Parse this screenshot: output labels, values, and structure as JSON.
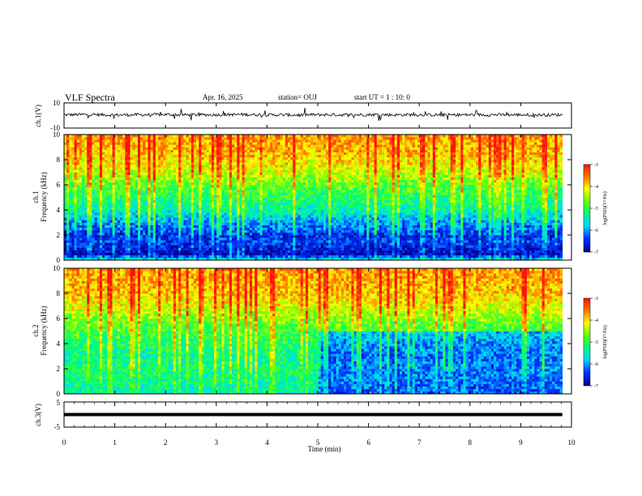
{
  "header": {
    "title": "VLF Spectra",
    "date": "Apr. 16, 2025",
    "station": "station= OUJ",
    "start_ut": "start  UT  =   1 : 10: 0"
  },
  "chart_data": [
    {
      "type": "line",
      "id": "ch1_waveform",
      "ylabel": "ch.1(V)",
      "ylim": [
        -10,
        10
      ],
      "y_tick_labels": [
        "10",
        "-10"
      ],
      "xlim": [
        0,
        10
      ],
      "series": [
        {
          "x": [
            0,
            0.5,
            1,
            1.5,
            2,
            2.5,
            3,
            3.5,
            4,
            4.5,
            5,
            5.5,
            6,
            6.5,
            7,
            7.5,
            8,
            8.5,
            9,
            9.5,
            9.82
          ],
          "y": [
            0.5,
            0.8,
            0.4,
            0.6,
            0.7,
            0.5,
            0.6,
            0.8,
            0.5,
            0.4,
            0.6,
            0.5,
            0.7,
            0.5,
            0.6,
            0.4,
            0.5,
            0.6,
            0.5,
            0.4,
            0.5
          ],
          "color": "#000000"
        }
      ]
    },
    {
      "type": "heatmap",
      "id": "ch1_spectrogram",
      "ylabel": "ch.1\nFrequency (kHz)",
      "ylim": [
        0,
        10
      ],
      "xlim": [
        0,
        10
      ],
      "y_ticks": [
        "0",
        "2",
        "4",
        "6",
        "8",
        "10"
      ],
      "data_end_min": 9.82,
      "color_scale": {
        "label": "log(PSD)(V²/Hz)",
        "min": -7,
        "max": -3,
        "ticks": [
          "-3",
          "-4",
          "-5",
          "-6",
          "-7"
        ]
      },
      "freq_profile_log_psd": [
        {
          "f": 0.0,
          "v": -5.6
        },
        {
          "f": 0.5,
          "v": -6.8
        },
        {
          "f": 1.0,
          "v": -6.6
        },
        {
          "f": 1.5,
          "v": -6.4
        },
        {
          "f": 2.0,
          "v": -6.5
        },
        {
          "f": 2.5,
          "v": -6.2
        },
        {
          "f": 3.0,
          "v": -6.0
        },
        {
          "f": 3.5,
          "v": -5.7
        },
        {
          "f": 4.0,
          "v": -5.4
        },
        {
          "f": 5.0,
          "v": -5.1
        },
        {
          "f": 6.0,
          "v": -4.8
        },
        {
          "f": 7.0,
          "v": -4.3
        },
        {
          "f": 8.0,
          "v": -4.0
        },
        {
          "f": 9.0,
          "v": -3.8
        },
        {
          "f": 10.0,
          "v": -3.7
        }
      ]
    },
    {
      "type": "heatmap",
      "id": "ch2_spectrogram",
      "ylabel": "ch.2\nFrequency (kHz)",
      "ylim": [
        0,
        10
      ],
      "xlim": [
        0,
        10
      ],
      "y_ticks": [
        "0",
        "2",
        "4",
        "6",
        "8",
        "10"
      ],
      "data_end_min": 9.82,
      "color_scale": {
        "label": "log(PSD)(V²/Hz)",
        "min": -7,
        "max": -3,
        "ticks": [
          "-3",
          "-4",
          "-5",
          "-6",
          "-7"
        ]
      },
      "freq_profile_log_psd": [
        {
          "f": 0.0,
          "v": -5.4
        },
        {
          "f": 1.0,
          "v": -5.3
        },
        {
          "f": 2.0,
          "v": -5.2
        },
        {
          "f": 3.0,
          "v": -5.3
        },
        {
          "f": 4.0,
          "v": -5.1
        },
        {
          "f": 5.0,
          "v": -4.9
        },
        {
          "f": 6.0,
          "v": -4.6
        },
        {
          "f": 7.0,
          "v": -4.2
        },
        {
          "f": 8.0,
          "v": -3.9
        },
        {
          "f": 9.0,
          "v": -3.8
        },
        {
          "f": 10.0,
          "v": -3.7
        }
      ],
      "quiet_region_after_min": 5.0,
      "quiet_region_max_khz": 5.0
    },
    {
      "type": "line",
      "id": "ch3_trace",
      "ylabel": "ch.3(V)",
      "ylim": [
        -5,
        5
      ],
      "y_tick_labels": [
        "5",
        "-5"
      ],
      "xlim": [
        0,
        10
      ],
      "xlabel": "Time  (min)",
      "x_ticks": [
        "0",
        "1",
        "2",
        "3",
        "4",
        "5",
        "6",
        "7",
        "8",
        "9",
        "10"
      ],
      "series": [
        {
          "x": [
            0,
            9.82
          ],
          "y": [
            0,
            0
          ],
          "color": "#000000"
        }
      ]
    }
  ]
}
